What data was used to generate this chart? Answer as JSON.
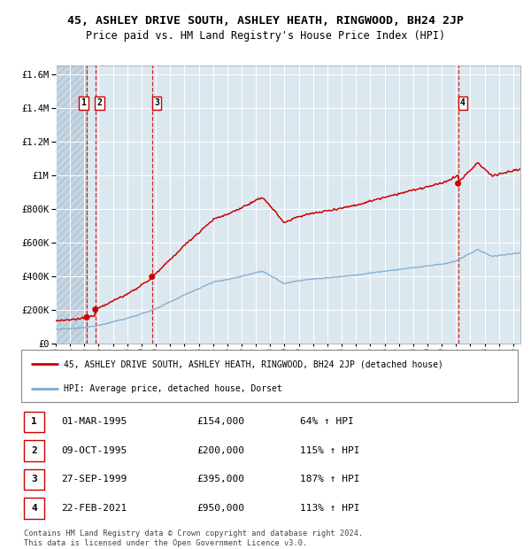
{
  "title": "45, ASHLEY DRIVE SOUTH, ASHLEY HEATH, RINGWOOD, BH24 2JP",
  "subtitle": "Price paid vs. HM Land Registry's House Price Index (HPI)",
  "legend_line1": "45, ASHLEY DRIVE SOUTH, ASHLEY HEATH, RINGWOOD, BH24 2JP (detached house)",
  "legend_line2": "HPI: Average price, detached house, Dorset",
  "footer1": "Contains HM Land Registry data © Crown copyright and database right 2024.",
  "footer2": "This data is licensed under the Open Government Licence v3.0.",
  "sales": [
    {
      "num": 1,
      "date_str": "01-MAR-1995",
      "price": 154000,
      "pct": "64%",
      "year": 1995.17
    },
    {
      "num": 2,
      "date_str": "09-OCT-1995",
      "price": 200000,
      "pct": "115%",
      "year": 1995.77
    },
    {
      "num": 3,
      "date_str": "27-SEP-1999",
      "price": 395000,
      "pct": "187%",
      "year": 1999.73
    },
    {
      "num": 4,
      "date_str": "22-FEB-2021",
      "price": 950000,
      "pct": "113%",
      "year": 2021.14
    }
  ],
  "hpi_color": "#7aaad0",
  "price_color": "#cc0000",
  "sale_marker_color": "#cc0000",
  "vline_color": "#cc0000",
  "plot_bg": "#dce8f0",
  "grid_color": "#ffffff",
  "ylim": [
    0,
    1650000
  ],
  "yticks": [
    0,
    200000,
    400000,
    600000,
    800000,
    1000000,
    1200000,
    1400000,
    1600000
  ],
  "xlim_start": 1993.0,
  "xlim_end": 2025.5
}
